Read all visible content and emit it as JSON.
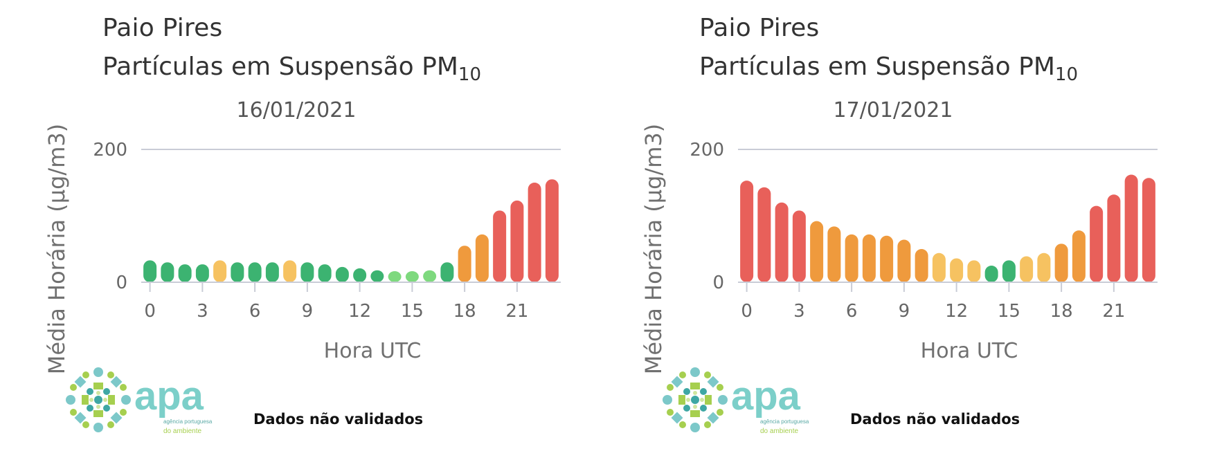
{
  "colors": {
    "good": "#3cb371",
    "lightgood": "#7ed97e",
    "moderate": "#f6c261",
    "poor": "#ef9a3d",
    "bad": "#e8605a",
    "axis": "#c9ccd6"
  },
  "charts": [
    {
      "station": "Paio Pires",
      "pollutant": "Partículas em Suspensão PM",
      "pollutant_sub": "10",
      "date": "16/01/2021",
      "note": "Dados não validados",
      "logo_text": "apa",
      "logo_subtext_1": "agência portuguesa",
      "logo_subtext_2": "do ambiente"
    },
    {
      "station": "Paio Pires",
      "pollutant": "Partículas em Suspensão PM",
      "pollutant_sub": "10",
      "date": "17/01/2021",
      "note": "Dados não validados",
      "logo_text": "apa",
      "logo_subtext_1": "agência portuguesa",
      "logo_subtext_2": "do ambiente"
    }
  ],
  "chart_data": [
    {
      "type": "bar",
      "title": "16/01/2021",
      "xlabel": "Hora UTC",
      "ylabel": "Média Horária (µg/m3)",
      "ylim": [
        0,
        200
      ],
      "yticks": [
        0,
        200
      ],
      "xticks": [
        0,
        3,
        6,
        9,
        12,
        15,
        18,
        21
      ],
      "x": [
        0,
        1,
        2,
        3,
        4,
        5,
        6,
        7,
        8,
        9,
        10,
        11,
        12,
        13,
        14,
        15,
        16,
        17,
        18,
        19,
        20,
        21,
        22,
        23
      ],
      "values": [
        33,
        30,
        27,
        27,
        33,
        30,
        30,
        30,
        33,
        30,
        27,
        23,
        21,
        18,
        15,
        15,
        18,
        30,
        55,
        72,
        108,
        123,
        150,
        155
      ],
      "levels": [
        "good",
        "good",
        "good",
        "good",
        "moderate",
        "good",
        "good",
        "good",
        "moderate",
        "good",
        "good",
        "good",
        "good",
        "good",
        "lightgood",
        "lightgood",
        "lightgood",
        "good",
        "poor",
        "poor",
        "bad",
        "bad",
        "bad",
        "bad"
      ]
    },
    {
      "type": "bar",
      "title": "17/01/2021",
      "xlabel": "Hora UTC",
      "ylabel": "Média Horária (µg/m3)",
      "ylim": [
        0,
        200
      ],
      "yticks": [
        0,
        200
      ],
      "xticks": [
        0,
        3,
        6,
        9,
        12,
        15,
        18,
        21
      ],
      "x": [
        0,
        1,
        2,
        3,
        4,
        5,
        6,
        7,
        8,
        9,
        10,
        11,
        12,
        13,
        14,
        15,
        16,
        17,
        18,
        19,
        20,
        21,
        22,
        23
      ],
      "values": [
        153,
        143,
        120,
        108,
        92,
        84,
        72,
        72,
        70,
        64,
        50,
        44,
        36,
        33,
        25,
        33,
        39,
        44,
        58,
        78,
        115,
        132,
        162,
        157
      ],
      "levels": [
        "bad",
        "bad",
        "bad",
        "bad",
        "poor",
        "poor",
        "poor",
        "poor",
        "poor",
        "poor",
        "poor",
        "moderate",
        "moderate",
        "moderate",
        "good",
        "good",
        "moderate",
        "moderate",
        "poor",
        "poor",
        "bad",
        "bad",
        "bad",
        "bad"
      ]
    }
  ]
}
